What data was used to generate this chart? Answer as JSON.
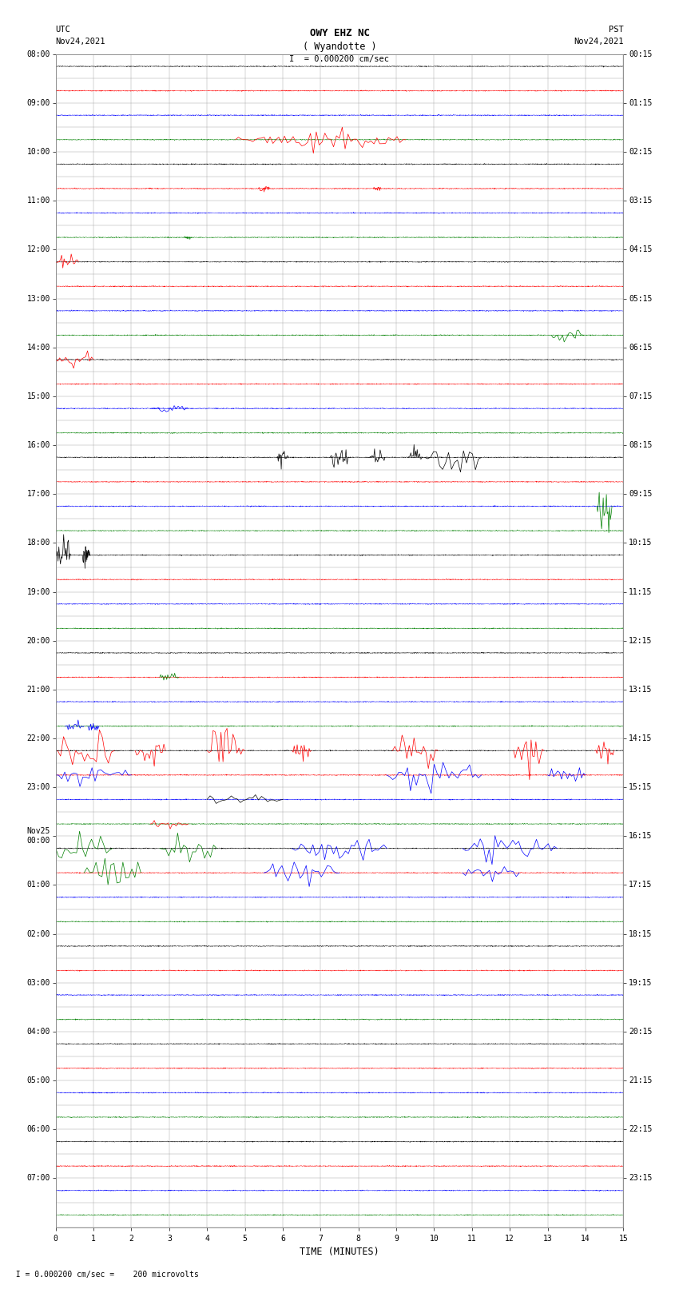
{
  "title_line1": "OWY EHZ NC",
  "title_line2": "( Wyandotte )",
  "scale_label": "I  = 0.000200 cm/sec",
  "left_date_line1": "UTC",
  "left_date_line2": "Nov24,2021",
  "right_date_line1": "PST",
  "right_date_line2": "Nov24,2021",
  "bottom_label": "TIME (MINUTES)",
  "footer_label": "  I = 0.000200 cm/sec =    200 microvolts",
  "utc_times": [
    "08:00",
    "09:00",
    "10:00",
    "11:00",
    "12:00",
    "13:00",
    "14:00",
    "15:00",
    "16:00",
    "17:00",
    "18:00",
    "19:00",
    "20:00",
    "21:00",
    "22:00",
    "23:00",
    "Nov25\n00:00",
    "01:00",
    "02:00",
    "03:00",
    "04:00",
    "05:00",
    "06:00",
    "07:00"
  ],
  "pst_times": [
    "00:15",
    "01:15",
    "02:15",
    "03:15",
    "04:15",
    "05:15",
    "06:15",
    "07:15",
    "08:15",
    "09:15",
    "10:15",
    "11:15",
    "12:15",
    "13:15",
    "14:15",
    "15:15",
    "16:15",
    "17:15",
    "18:15",
    "19:15",
    "20:15",
    "21:15",
    "22:15",
    "23:15"
  ],
  "num_rows": 48,
  "xmin": 0,
  "xmax": 15,
  "bg_color": "#ffffff",
  "grid_color": "#aaaaaa",
  "tick_label_size": 7,
  "title_fontsize": 9,
  "header_fontsize": 7.5,
  "row_colors": [
    "black",
    "red",
    "blue",
    "green",
    "black",
    "red",
    "blue",
    "green",
    "black",
    "red",
    "blue",
    "green",
    "black",
    "red",
    "blue",
    "green",
    "black",
    "red",
    "blue",
    "green",
    "black",
    "red",
    "blue",
    "green",
    "black",
    "red",
    "blue",
    "green",
    "black",
    "red",
    "blue",
    "green",
    "black",
    "red",
    "blue",
    "green",
    "black",
    "red",
    "blue",
    "green",
    "black",
    "red",
    "blue",
    "green",
    "black",
    "red",
    "blue",
    "green"
  ]
}
